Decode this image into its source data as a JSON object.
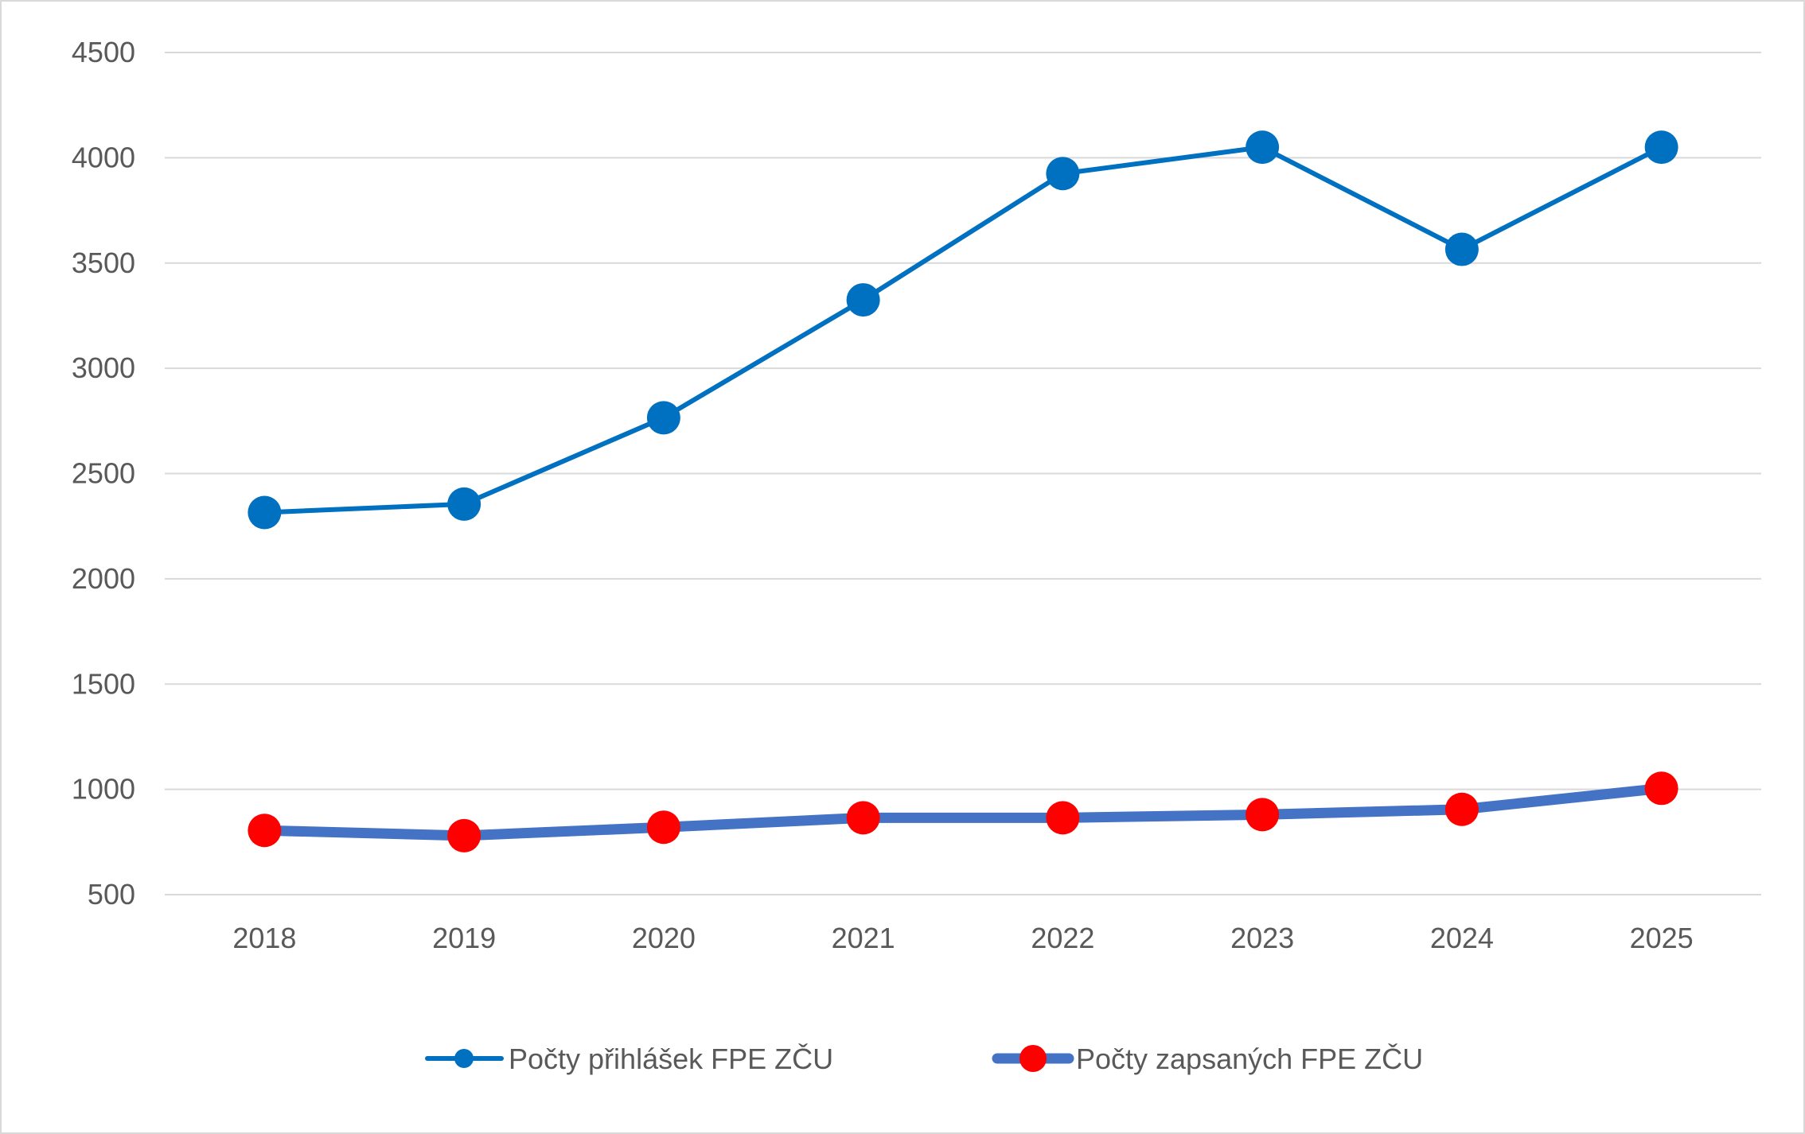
{
  "chart_data": {
    "type": "line",
    "title": "",
    "xlabel": "",
    "ylabel": "",
    "categories": [
      "2018",
      "2019",
      "2020",
      "2021",
      "2022",
      "2023",
      "2024",
      "2025"
    ],
    "ylim": [
      500,
      4500
    ],
    "yticks": [
      500,
      1000,
      1500,
      2000,
      2500,
      3000,
      3500,
      4000,
      4500
    ],
    "ytick_labels": [
      "500",
      "1000",
      "1500",
      "2000",
      "2500",
      "3000",
      "3500",
      "4000",
      "4500"
    ],
    "grid": "horizontal",
    "legend_position": "bottom",
    "series": [
      {
        "name": "Počty přihlášek FPE ZČU",
        "values": [
          2315,
          2355,
          2765,
          3325,
          3925,
          4050,
          3565,
          4050
        ],
        "line_color": "#0070c0",
        "marker_color": "#0070c0"
      },
      {
        "name": "Počty zapsaných FPE ZČU",
        "values": [
          805,
          780,
          820,
          865,
          865,
          880,
          905,
          1005
        ],
        "line_color": "#4472c4",
        "marker_color": "#ff0000"
      }
    ],
    "colors": {
      "grid": "#d9d9d9",
      "text": "#595959"
    }
  }
}
